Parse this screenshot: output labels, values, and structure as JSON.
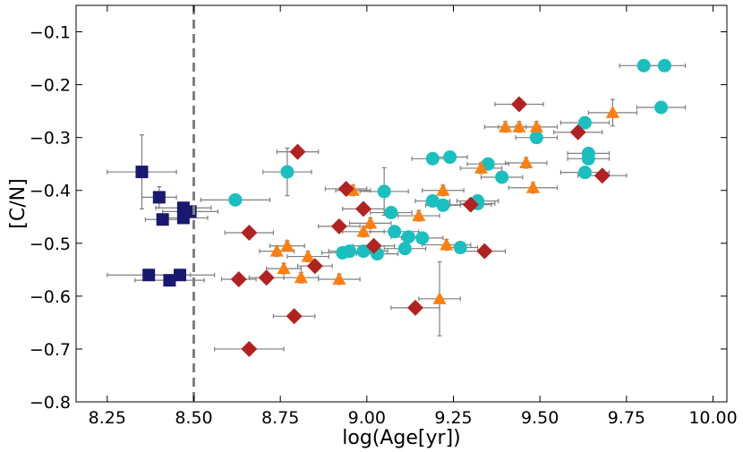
{
  "chart_data": {
    "type": "scatter",
    "title": "",
    "xlabel": "log(Age[yr])",
    "ylabel": "[C/N]",
    "xlim": [
      8.16,
      10.04
    ],
    "ylim": [
      -0.8,
      -0.05
    ],
    "x_ticks": [
      8.25,
      8.5,
      8.75,
      9.0,
      9.25,
      9.5,
      9.75,
      10.0
    ],
    "x_tick_labels": [
      "8.25",
      "8.50",
      "8.75",
      "9.00",
      "9.25",
      "9.50",
      "9.75",
      "10.00"
    ],
    "y_ticks": [
      -0.1,
      -0.2,
      -0.3,
      -0.4,
      -0.5,
      -0.6,
      -0.7,
      -0.8
    ],
    "y_tick_labels": [
      "−0.1",
      "−0.2",
      "−0.3",
      "−0.4",
      "−0.5",
      "−0.6",
      "−0.7",
      "−0.8"
    ],
    "vline": {
      "x": 8.5,
      "color": "#808080",
      "style": "dashed"
    },
    "errorbar_color": "#7f7f7f",
    "series": [
      {
        "name": "squares",
        "marker": "square",
        "color": "#191970",
        "points": [
          {
            "x": 8.35,
            "y": -0.365,
            "xerr": 0.1,
            "yerr": 0.07
          },
          {
            "x": 8.4,
            "y": -0.413,
            "xerr": 0.05,
            "yerr": 0.02
          },
          {
            "x": 8.41,
            "y": -0.455,
            "xerr": 0.05,
            "yerr": 0.01
          },
          {
            "x": 8.47,
            "y": -0.433,
            "xerr": 0.08,
            "yerr": 0.01
          },
          {
            "x": 8.47,
            "y": -0.452,
            "xerr": 0.07,
            "yerr": 0.01
          },
          {
            "x": 8.49,
            "y": -0.44,
            "xerr": 0.08,
            "yerr": 0.01
          },
          {
            "x": 8.37,
            "y": -0.56,
            "xerr": 0.12,
            "yerr": 0.01
          },
          {
            "x": 8.43,
            "y": -0.57,
            "xerr": 0.1,
            "yerr": 0.01
          },
          {
            "x": 8.46,
            "y": -0.56,
            "xerr": 0.1,
            "yerr": 0.01
          }
        ]
      },
      {
        "name": "circles",
        "marker": "circle",
        "color": "#1abfbf",
        "points": [
          {
            "x": 8.62,
            "y": -0.418,
            "xerr": 0.1,
            "yerr": 0.01
          },
          {
            "x": 8.77,
            "y": -0.365,
            "xerr": 0.07,
            "yerr": 0.045
          },
          {
            "x": 8.95,
            "y": -0.515,
            "xerr": 0.06,
            "yerr": 0.01
          },
          {
            "x": 8.93,
            "y": -0.518,
            "xerr": 0.06,
            "yerr": 0.01
          },
          {
            "x": 8.99,
            "y": -0.515,
            "xerr": 0.07,
            "yerr": 0.01
          },
          {
            "x": 9.03,
            "y": -0.52,
            "xerr": 0.06,
            "yerr": 0.01
          },
          {
            "x": 9.05,
            "y": -0.402,
            "xerr": 0.07,
            "yerr": 0.045
          },
          {
            "x": 9.07,
            "y": -0.442,
            "xerr": 0.06,
            "yerr": 0.01
          },
          {
            "x": 9.08,
            "y": -0.478,
            "xerr": 0.07,
            "yerr": 0.01
          },
          {
            "x": 9.11,
            "y": -0.51,
            "xerr": 0.06,
            "yerr": 0.01
          },
          {
            "x": 9.12,
            "y": -0.488,
            "xerr": 0.05,
            "yerr": 0.01
          },
          {
            "x": 9.16,
            "y": -0.49,
            "xerr": 0.06,
            "yerr": 0.01
          },
          {
            "x": 9.19,
            "y": -0.42,
            "xerr": 0.05,
            "yerr": 0.01
          },
          {
            "x": 9.22,
            "y": -0.428,
            "xerr": 0.05,
            "yerr": 0.01
          },
          {
            "x": 9.19,
            "y": -0.34,
            "xerr": 0.06,
            "yerr": 0.01
          },
          {
            "x": 9.24,
            "y": -0.337,
            "xerr": 0.05,
            "yerr": 0.01
          },
          {
            "x": 9.27,
            "y": -0.508,
            "xerr": 0.05,
            "yerr": 0.01
          },
          {
            "x": 9.32,
            "y": -0.42,
            "xerr": 0.06,
            "yerr": 0.01
          },
          {
            "x": 9.32,
            "y": -0.425,
            "xerr": 0.05,
            "yerr": 0.01
          },
          {
            "x": 9.35,
            "y": -0.35,
            "xerr": 0.06,
            "yerr": 0.01
          },
          {
            "x": 9.39,
            "y": -0.375,
            "xerr": 0.06,
            "yerr": 0.01
          },
          {
            "x": 9.49,
            "y": -0.3,
            "xerr": 0.06,
            "yerr": 0.01
          },
          {
            "x": 9.63,
            "y": -0.272,
            "xerr": 0.07,
            "yerr": 0.01
          },
          {
            "x": 9.64,
            "y": -0.33,
            "xerr": 0.06,
            "yerr": 0.01
          },
          {
            "x": 9.64,
            "y": -0.34,
            "xerr": 0.06,
            "yerr": 0.01
          },
          {
            "x": 9.63,
            "y": -0.366,
            "xerr": 0.07,
            "yerr": 0.01
          },
          {
            "x": 9.8,
            "y": -0.164,
            "xerr": 0.07,
            "yerr": 0.005
          },
          {
            "x": 9.86,
            "y": -0.164,
            "xerr": 0.06,
            "yerr": 0.005
          },
          {
            "x": 9.85,
            "y": -0.243,
            "xerr": 0.07,
            "yerr": 0.01
          }
        ]
      },
      {
        "name": "triangles",
        "marker": "triangle",
        "color": "#ff7f0e",
        "points": [
          {
            "x": 8.74,
            "y": -0.515,
            "xerr": 0.05,
            "yerr": 0.01
          },
          {
            "x": 8.77,
            "y": -0.505,
            "xerr": 0.05,
            "yerr": 0.01
          },
          {
            "x": 8.76,
            "y": -0.548,
            "xerr": 0.05,
            "yerr": 0.01
          },
          {
            "x": 8.81,
            "y": -0.565,
            "xerr": 0.05,
            "yerr": 0.01
          },
          {
            "x": 8.83,
            "y": -0.525,
            "xerr": 0.06,
            "yerr": 0.01
          },
          {
            "x": 8.92,
            "y": -0.568,
            "xerr": 0.06,
            "yerr": 0.01
          },
          {
            "x": 8.96,
            "y": -0.4,
            "xerr": 0.05,
            "yerr": 0.01
          },
          {
            "x": 8.99,
            "y": -0.478,
            "xerr": 0.06,
            "yerr": 0.01
          },
          {
            "x": 9.01,
            "y": -0.462,
            "xerr": 0.06,
            "yerr": 0.01
          },
          {
            "x": 9.15,
            "y": -0.448,
            "xerr": 0.06,
            "yerr": 0.01
          },
          {
            "x": 9.21,
            "y": -0.605,
            "xerr": 0.06,
            "yerr": 0.07
          },
          {
            "x": 9.22,
            "y": -0.4,
            "xerr": 0.06,
            "yerr": 0.01
          },
          {
            "x": 9.23,
            "y": -0.503,
            "xerr": 0.07,
            "yerr": 0.01
          },
          {
            "x": 9.33,
            "y": -0.358,
            "xerr": 0.06,
            "yerr": 0.01
          },
          {
            "x": 9.4,
            "y": -0.28,
            "xerr": 0.06,
            "yerr": 0.01
          },
          {
            "x": 9.44,
            "y": -0.28,
            "xerr": 0.06,
            "yerr": 0.01
          },
          {
            "x": 9.49,
            "y": -0.28,
            "xerr": 0.06,
            "yerr": 0.01
          },
          {
            "x": 9.46,
            "y": -0.348,
            "xerr": 0.06,
            "yerr": 0.01
          },
          {
            "x": 9.48,
            "y": -0.395,
            "xerr": 0.07,
            "yerr": 0.01
          },
          {
            "x": 9.71,
            "y": -0.253,
            "xerr": 0.07,
            "yerr": 0.025
          }
        ]
      },
      {
        "name": "diamonds",
        "marker": "diamond",
        "color": "#b22222",
        "points": [
          {
            "x": 8.63,
            "y": -0.568,
            "xerr": 0.05,
            "yerr": 0.01
          },
          {
            "x": 8.66,
            "y": -0.48,
            "xerr": 0.07,
            "yerr": 0.01
          },
          {
            "x": 8.66,
            "y": -0.7,
            "xerr": 0.1,
            "yerr": 0.01
          },
          {
            "x": 8.71,
            "y": -0.565,
            "xerr": 0.05,
            "yerr": 0.01
          },
          {
            "x": 8.79,
            "y": -0.638,
            "xerr": 0.06,
            "yerr": 0.01
          },
          {
            "x": 8.8,
            "y": -0.327,
            "xerr": 0.06,
            "yerr": 0.01
          },
          {
            "x": 8.85,
            "y": -0.543,
            "xerr": 0.05,
            "yerr": 0.01
          },
          {
            "x": 8.92,
            "y": -0.468,
            "xerr": 0.06,
            "yerr": 0.01
          },
          {
            "x": 8.94,
            "y": -0.397,
            "xerr": 0.06,
            "yerr": 0.01
          },
          {
            "x": 8.99,
            "y": -0.435,
            "xerr": 0.06,
            "yerr": 0.01
          },
          {
            "x": 9.02,
            "y": -0.505,
            "xerr": 0.06,
            "yerr": 0.01
          },
          {
            "x": 9.14,
            "y": -0.622,
            "xerr": 0.07,
            "yerr": 0.01
          },
          {
            "x": 9.3,
            "y": -0.427,
            "xerr": 0.06,
            "yerr": 0.01
          },
          {
            "x": 9.34,
            "y": -0.515,
            "xerr": 0.06,
            "yerr": 0.01
          },
          {
            "x": 9.44,
            "y": -0.237,
            "xerr": 0.07,
            "yerr": 0.01
          },
          {
            "x": 9.61,
            "y": -0.29,
            "xerr": 0.07,
            "yerr": 0.01
          },
          {
            "x": 9.68,
            "y": -0.372,
            "xerr": 0.07,
            "yerr": 0.01
          }
        ]
      }
    ]
  }
}
